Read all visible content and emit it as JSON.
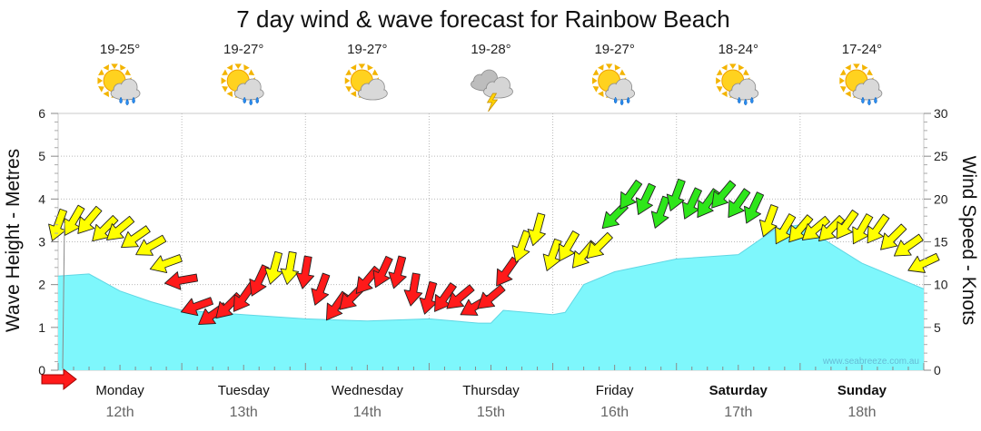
{
  "chart_data": {
    "type": "area",
    "title": "7 day wind & wave forecast for Rainbow Beach",
    "ylabel_left": "Wave Height - Metres",
    "ylabel_right": "Wind Speed - Knots",
    "ylim_left": [
      0,
      6
    ],
    "ylim_right": [
      0,
      30
    ],
    "yticks_left": [
      "0",
      "1",
      "2",
      "3",
      "4",
      "5",
      "6"
    ],
    "yticks_right": [
      "0",
      "5",
      "10",
      "15",
      "20",
      "25",
      "30"
    ],
    "grid": true,
    "x_range_days": [
      0,
      7
    ],
    "days": [
      {
        "name": "Monday",
        "date": "12th",
        "bold": false,
        "temp": "19-25°",
        "weather_icon": "sun-cloud-showers-icon"
      },
      {
        "name": "Tuesday",
        "date": "13th",
        "bold": false,
        "temp": "19-27°",
        "weather_icon": "sun-cloud-showers-icon"
      },
      {
        "name": "Wednesday",
        "date": "14th",
        "bold": false,
        "temp": "19-27°",
        "weather_icon": "sun-cloud-icon"
      },
      {
        "name": "Thursday",
        "date": "15th",
        "bold": false,
        "temp": "19-28°",
        "weather_icon": "storm-cloud-icon"
      },
      {
        "name": "Friday",
        "date": "16th",
        "bold": false,
        "temp": "19-27°",
        "weather_icon": "sun-cloud-showers-icon"
      },
      {
        "name": "Saturday",
        "date": "17th",
        "bold": true,
        "temp": "18-24°",
        "weather_icon": "sun-cloud-showers-icon"
      },
      {
        "name": "Sunday",
        "date": "18th",
        "bold": true,
        "temp": "17-24°",
        "weather_icon": "sun-cloud-showers-icon"
      }
    ],
    "wave_height": {
      "name": "Wave Height",
      "color": "#7ef7fc",
      "x": [
        0,
        0.25,
        0.5,
        0.75,
        1.0,
        1.5,
        2.0,
        2.5,
        3.0,
        3.4,
        3.5,
        3.6,
        4.0,
        4.1,
        4.25,
        4.5,
        5.0,
        5.5,
        5.8,
        6.0,
        6.5,
        7.0
      ],
      "y": [
        2.2,
        2.25,
        1.85,
        1.6,
        1.4,
        1.3,
        1.2,
        1.15,
        1.2,
        1.1,
        1.1,
        1.4,
        1.3,
        1.35,
        2.0,
        2.3,
        2.6,
        2.7,
        3.3,
        3.4,
        2.5,
        1.9
      ]
    },
    "wind": {
      "name": "Wind Speed",
      "x": [
        0,
        0.125,
        0.25,
        0.375,
        0.5,
        0.625,
        0.75,
        0.875,
        1.0,
        1.125,
        1.25,
        1.375,
        1.5,
        1.625,
        1.75,
        1.875,
        2.0,
        2.125,
        2.25,
        2.375,
        2.5,
        2.625,
        2.75,
        2.875,
        3.0,
        3.125,
        3.25,
        3.375,
        3.5,
        3.625,
        3.75,
        3.875,
        4.0,
        4.125,
        4.25,
        4.375,
        4.5,
        4.625,
        4.75,
        4.875,
        5.0,
        5.125,
        5.25,
        5.375,
        5.5,
        5.625,
        5.75,
        5.875,
        6.0,
        6.125,
        6.25,
        6.375,
        6.5,
        6.625,
        6.75,
        6.875,
        7.0
      ],
      "knots": [
        17,
        17.5,
        17.5,
        16.5,
        16.5,
        15.5,
        14.5,
        12.5,
        10.5,
        7.5,
        6.5,
        7.5,
        8.5,
        10.5,
        12,
        12,
        11.5,
        9.5,
        7.5,
        8.5,
        10.5,
        11.5,
        11.5,
        9.5,
        8.5,
        8.5,
        8.5,
        7.5,
        8.5,
        11.5,
        14.5,
        16.5,
        13.5,
        14.5,
        13.5,
        14.5,
        18,
        20.5,
        20,
        18.5,
        20.5,
        19.5,
        19.5,
        20.5,
        19.5,
        19,
        17.5,
        16.5,
        16.5,
        16.5,
        16.5,
        17,
        16.5,
        16.5,
        15.5,
        14.5,
        12.5
      ],
      "direction_deg": [
        200,
        210,
        220,
        225,
        230,
        235,
        240,
        250,
        260,
        250,
        235,
        225,
        215,
        205,
        195,
        190,
        190,
        200,
        215,
        225,
        220,
        205,
        195,
        190,
        195,
        215,
        230,
        240,
        230,
        215,
        200,
        195,
        200,
        210,
        220,
        225,
        225,
        215,
        205,
        200,
        200,
        205,
        215,
        220,
        215,
        205,
        200,
        210,
        220,
        230,
        225,
        215,
        210,
        215,
        225,
        235,
        245
      ],
      "color_thresholds": {
        "red_below": 12,
        "green_at_or_above": 18
      },
      "colors": {
        "red": "#ff1a1a",
        "yellow": "#ffff00",
        "green": "#2ee61a",
        "outline": "#222222"
      }
    },
    "watermark": "www.seabreeze.com.au"
  }
}
